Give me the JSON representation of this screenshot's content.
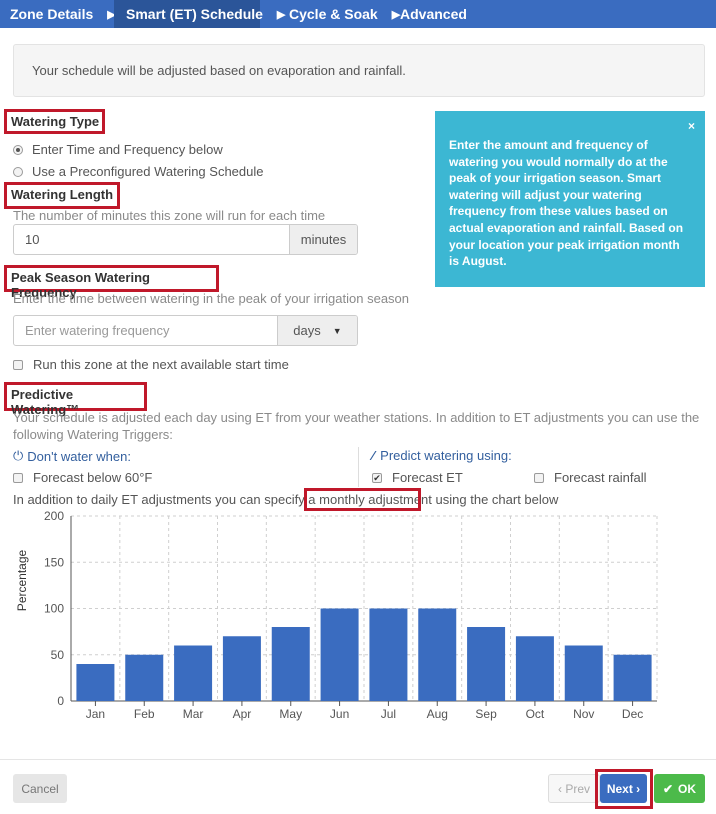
{
  "tabs": [
    {
      "label": "Zone Details",
      "sep": "▶"
    },
    {
      "label": "Smart (ET) Schedule",
      "sep": "▶"
    },
    {
      "label": "Cycle & Soak",
      "sep": "▶"
    },
    {
      "label": "Advanced",
      "sep": ""
    }
  ],
  "info": "Your schedule will be adjusted based on evaporation and rainfall.",
  "watering_type": {
    "heading": "Watering Type",
    "options": [
      "Enter Time and Frequency below",
      "Use a Preconfigured Watering Schedule"
    ],
    "selected": 0
  },
  "watering_length": {
    "heading": "Watering Length",
    "help": "The number of minutes this zone will run for each time",
    "value": "10",
    "unit": "minutes"
  },
  "peak_season": {
    "heading": "Peak Season Watering Frequency",
    "help": "Enter the time between watering in the peak of your irrigation season",
    "placeholder": "Enter watering frequency",
    "unit": "days",
    "caret": "▼",
    "run_next_label": "Run this zone at the next available start time"
  },
  "predictive": {
    "heading": "Predictive Watering™",
    "help_line1": "Your schedule is adjusted each day using ET from your weather stations. In addition to ET adjustments you can use the",
    "help_line2": "following Watering Triggers:",
    "dont_water_label": "Don't water when:",
    "dont_water_icon": "⏻",
    "forecast_below_label": "Forecast below 60°F",
    "predict_label": "Predict watering using:",
    "predict_icon": "⁄",
    "forecast_et_label": "Forecast ET",
    "forecast_et_checked": true,
    "forecast_rain_label": "Forecast rainfall",
    "monthly_prefix": "In addition to daily ET adjustments you can specify a",
    "monthly_link": "monthly adjustment",
    "monthly_suffix": "using the chart below"
  },
  "callout": {
    "text": "Enter the amount and frequency of watering you would normally do at the peak of your irrigation season. Smart watering will adjust your watering frequency from these values based on actual evaporation and rainfall. Based on your location your peak irrigation month is August.",
    "close": "×"
  },
  "chart_data": {
    "type": "bar",
    "categories": [
      "Jan",
      "Feb",
      "Mar",
      "Apr",
      "May",
      "Jun",
      "Jul",
      "Aug",
      "Sep",
      "Oct",
      "Nov",
      "Dec"
    ],
    "values": [
      40,
      50,
      60,
      70,
      80,
      100,
      100,
      100,
      80,
      70,
      60,
      50
    ],
    "ylabel": "Percentage",
    "ylim": [
      0,
      200
    ],
    "yticks": [
      0,
      50,
      100,
      150,
      200
    ],
    "grid": true,
    "bar_color": "#3a6cc0"
  },
  "footer": {
    "cancel": "Cancel",
    "prev": "‹ Prev",
    "next": "Next ›",
    "ok_icon": "✔",
    "ok": "OK"
  },
  "colors": {
    "tab_bar": "#3a6cc0",
    "tab_active": "#2b5599",
    "callout": "#3cb7d3",
    "highlight": "#c0182a",
    "ok": "#4cba4a"
  }
}
